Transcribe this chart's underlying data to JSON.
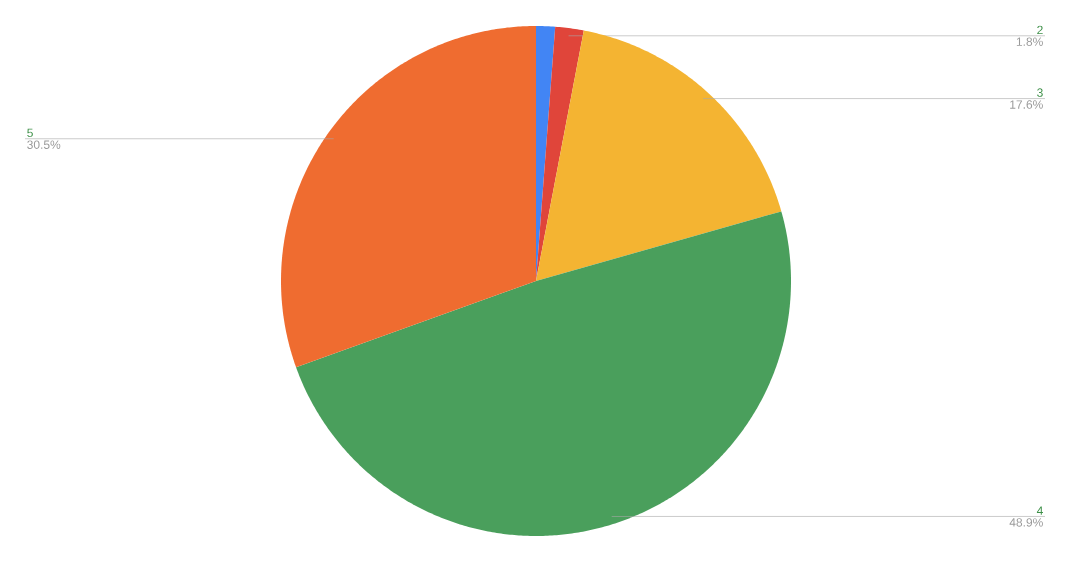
{
  "chart_data": {
    "type": "pie",
    "categories": [
      null,
      "2",
      "3",
      "4",
      "5"
    ],
    "values": [
      1.2,
      1.8,
      17.6,
      48.9,
      30.5
    ],
    "colors": [
      "#4285f4",
      "#e0453a",
      "#f4b432",
      "#4a9f5c",
      "#ef6c30"
    ],
    "value_labels": [
      null,
      "1.8%",
      "17.6%",
      "48.9%",
      "30.5%"
    ]
  }
}
